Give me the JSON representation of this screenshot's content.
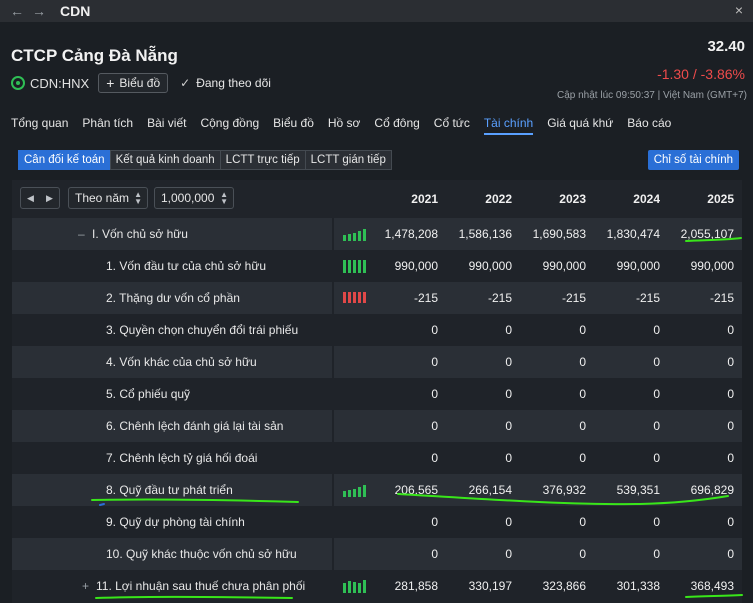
{
  "window": {
    "title": "CDN",
    "back": "←",
    "forward": "→",
    "close": "×"
  },
  "company": {
    "name": "CTCP Cảng Đà Nẵng",
    "ticker": "CDN:HNX",
    "chart_button": "Biểu đồ",
    "follow_label": "Đang theo dõi",
    "price": "32.40",
    "change": "-1.30 / -3.86%",
    "updated": "Cập nhật lúc  09:50:37 | Việt Nam (GMT+7)"
  },
  "tabs": [
    "Tổng quan",
    "Phân tích",
    "Bài viết",
    "Cộng đồng",
    "Biểu đồ",
    "Hồ sơ",
    "Cổ đông",
    "Cổ tức",
    "Tài chính",
    "Giá quá khứ",
    "Báo cáo"
  ],
  "active_tab": "Tài chính",
  "subtabs": [
    "Cân đối kế toán",
    "Kết quả kinh doanh",
    "LCTT trực tiếp",
    "LCTT gián tiếp"
  ],
  "ratio_button": "Chỉ số tài chính",
  "controls": {
    "period": "Theo năm",
    "unit": "1,000,000"
  },
  "years": [
    "2021",
    "2022",
    "2023",
    "2024",
    "2025"
  ],
  "rows": [
    {
      "label": "I. Vốn chủ sở hữu",
      "prefix": "–",
      "values": [
        "1,478,208",
        "1,586,136",
        "1,690,583",
        "1,830,474",
        "2,055,107"
      ],
      "spark": "up"
    },
    {
      "label": "1. Vốn đầu tư của chủ sở hữu",
      "values": [
        "990,000",
        "990,000",
        "990,000",
        "990,000",
        "990,000"
      ],
      "spark": "flat"
    },
    {
      "label": "2. Thặng dư vốn cổ phần",
      "values": [
        "-215",
        "-215",
        "-215",
        "-215",
        "-215"
      ],
      "spark": "neg"
    },
    {
      "label": "3. Quyền chọn chuyển đổi trái phiếu",
      "values": [
        "0",
        "0",
        "0",
        "0",
        "0"
      ]
    },
    {
      "label": "4. Vốn khác của chủ sở hữu",
      "values": [
        "0",
        "0",
        "0",
        "0",
        "0"
      ]
    },
    {
      "label": "5. Cổ phiếu quỹ",
      "values": [
        "0",
        "0",
        "0",
        "0",
        "0"
      ]
    },
    {
      "label": "6. Chênh lệch đánh giá lại tài sản",
      "values": [
        "0",
        "0",
        "0",
        "0",
        "0"
      ]
    },
    {
      "label": "7. Chênh lệch tỷ giá hối đoái",
      "values": [
        "0",
        "0",
        "0",
        "0",
        "0"
      ]
    },
    {
      "label": "8. Quỹ đầu tư phát triển",
      "values": [
        "206,565",
        "266,154",
        "376,932",
        "539,351",
        "696,829"
      ],
      "spark": "up"
    },
    {
      "label": "9. Quỹ dự phòng tài chính",
      "values": [
        "0",
        "0",
        "0",
        "0",
        "0"
      ]
    },
    {
      "label": "10. Quỹ khác thuộc vốn chủ sở hữu",
      "values": [
        "0",
        "0",
        "0",
        "0",
        "0"
      ]
    },
    {
      "label": "11. Lợi nhuận sau thuế chưa phân phối",
      "prefix": "+",
      "values": [
        "281,858",
        "330,197",
        "323,866",
        "301,338",
        "368,493"
      ],
      "spark": "mixed"
    }
  ],
  "colors": {
    "accent": "#2a6fd6",
    "negative": "#ee4b4b",
    "spark_green": "#2fbf55",
    "spark_red": "#e04848",
    "annotation": "#39e61a"
  }
}
